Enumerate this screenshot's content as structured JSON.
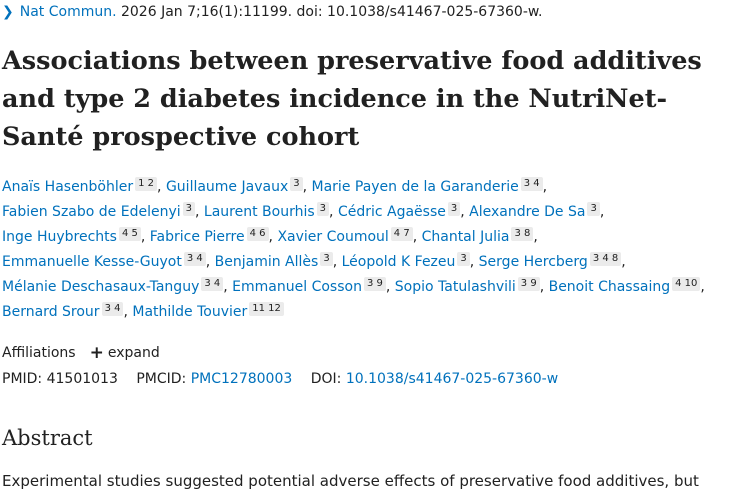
{
  "citation": {
    "journal": "Nat Commun.",
    "details": " 2026 Jan 7;16(1):11199. doi: 10.1038/s41467-025-67360-w."
  },
  "title": "Associations between preservative food additives and type 2 diabetes incidence in the NutriNet-Santé prospective cohort",
  "authors": [
    {
      "name": "Anaïs Hasenböhler",
      "affs": "1 2"
    },
    {
      "name": "Guillaume Javaux",
      "affs": "3"
    },
    {
      "name": "Marie Payen de la Garanderie",
      "affs": "3 4"
    },
    {
      "name": "Fabien Szabo de Edelenyi",
      "affs": "3"
    },
    {
      "name": "Laurent Bourhis",
      "affs": "3"
    },
    {
      "name": "Cédric Agaësse",
      "affs": "3"
    },
    {
      "name": "Alexandre De Sa",
      "affs": "3"
    },
    {
      "name": "Inge Huybrechts",
      "affs": "4 5"
    },
    {
      "name": "Fabrice Pierre",
      "affs": "4 6"
    },
    {
      "name": "Xavier Coumoul",
      "affs": "4 7"
    },
    {
      "name": "Chantal Julia",
      "affs": "3 8"
    },
    {
      "name": "Emmanuelle Kesse-Guyot",
      "affs": "3 4"
    },
    {
      "name": "Benjamin Allès",
      "affs": "3"
    },
    {
      "name": "Léopold K Fezeu",
      "affs": "3"
    },
    {
      "name": "Serge Hercberg",
      "affs": "3 4 8"
    },
    {
      "name": "Mélanie Deschasaux-Tanguy",
      "affs": "3 4"
    },
    {
      "name": "Emmanuel Cosson",
      "affs": "3 9"
    },
    {
      "name": "Sopio Tatulashvili",
      "affs": "3 9"
    },
    {
      "name": "Benoit Chassaing",
      "affs": "4 10"
    },
    {
      "name": "Bernard Srour",
      "affs": "3 4"
    },
    {
      "name": "Mathilde Touvier",
      "affs": "11 12"
    }
  ],
  "affiliations": {
    "label": "Affiliations",
    "expand_label": "expand"
  },
  "identifiers": {
    "pmid_label": "PMID:",
    "pmid": "41501013",
    "pmcid_label": "PMCID:",
    "pmcid": "PMC12780003",
    "doi_label": "DOI:",
    "doi": "10.1038/s41467-025-67360-w"
  },
  "abstract": {
    "heading": "Abstract",
    "text": "Experimental studies suggested potential adverse effects of preservative food additives, but"
  },
  "colors": {
    "link": "#0071bc",
    "text": "#212121",
    "aff_badge_bg": "#ebebeb"
  }
}
